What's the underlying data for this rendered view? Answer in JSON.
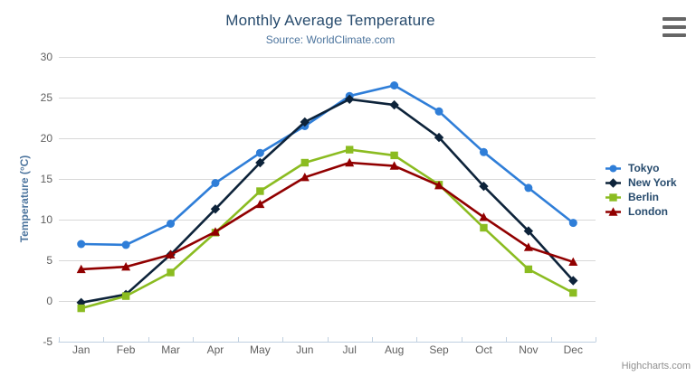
{
  "credits": "Highcharts.com",
  "chart_data": {
    "type": "line",
    "title": "Monthly Average Temperature",
    "subtitle": "Source: WorldClimate.com",
    "xlabel": "",
    "ylabel": "Temperature (°C)",
    "categories": [
      "Jan",
      "Feb",
      "Mar",
      "Apr",
      "May",
      "Jun",
      "Jul",
      "Aug",
      "Sep",
      "Oct",
      "Nov",
      "Dec"
    ],
    "ylim": [
      -5,
      30
    ],
    "ytick_step": 5,
    "ytick_labels": [
      "-5",
      "0",
      "5",
      "10",
      "15",
      "20",
      "25",
      "30"
    ],
    "grid": true,
    "legend_position": "right",
    "series": [
      {
        "name": "Tokyo",
        "color": "#2f7ed8",
        "marker": "circle",
        "values": [
          7.0,
          6.9,
          9.5,
          14.5,
          18.2,
          21.5,
          25.2,
          26.5,
          23.3,
          18.3,
          13.9,
          9.6
        ]
      },
      {
        "name": "New York",
        "color": "#0d233a",
        "marker": "diamond",
        "values": [
          -0.2,
          0.8,
          5.7,
          11.3,
          17.0,
          22.0,
          24.8,
          24.1,
          20.1,
          14.1,
          8.6,
          2.5
        ]
      },
      {
        "name": "Berlin",
        "color": "#8bbc21",
        "marker": "square",
        "values": [
          -0.9,
          0.6,
          3.5,
          8.4,
          13.5,
          17.0,
          18.6,
          17.9,
          14.3,
          9.0,
          3.9,
          1.0
        ]
      },
      {
        "name": "London",
        "color": "#910000",
        "marker": "triangle",
        "values": [
          3.9,
          4.2,
          5.7,
          8.5,
          11.9,
          15.2,
          17.0,
          16.6,
          14.2,
          10.3,
          6.6,
          4.8
        ]
      }
    ],
    "style": {
      "title_color": "#274b6d",
      "subtitle_color": "#4d759e",
      "axis_title_color": "#4d759e",
      "axis_label_color": "#606060",
      "legend_text_color": "#274b6d",
      "grid_color": "#d8d8d8",
      "axis_line_color": "#c0d0e0",
      "credits_color": "#909090",
      "menu_icon_color": "#666666"
    }
  }
}
